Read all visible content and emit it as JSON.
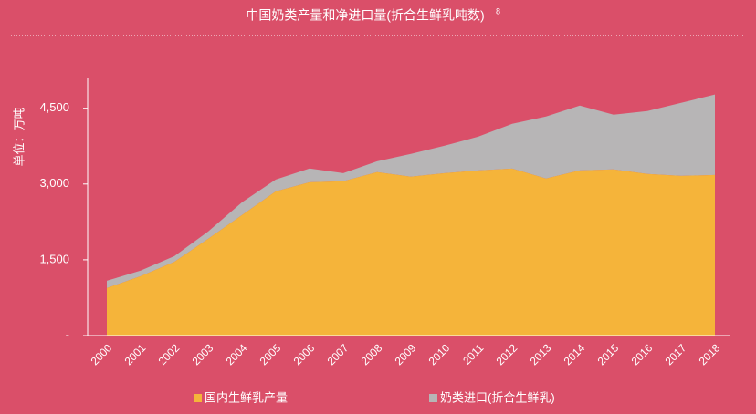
{
  "chart_data": {
    "type": "stacked_area",
    "title": "中国奶类产量和净进口量(折合生鲜乳吨数)",
    "title_note": "8",
    "y_label": "单位：万吨",
    "categories": [
      "2000",
      "2001",
      "2002",
      "2003",
      "2004",
      "2005",
      "2006",
      "2007",
      "2008",
      "2009",
      "2010",
      "2011",
      "2012",
      "2013",
      "2014",
      "2015",
      "2016",
      "2017",
      "2018"
    ],
    "series": [
      {
        "name": "国内生鲜乳产量",
        "color": "#f5b43a",
        "values": [
          940,
          1175,
          1460,
          1915,
          2385,
          2855,
          3035,
          3055,
          3235,
          3145,
          3215,
          3270,
          3305,
          3110,
          3270,
          3290,
          3200,
          3160,
          3180
        ]
      },
      {
        "name": "奶类进口(折合生鲜乳)",
        "color": "#b7b5b6",
        "values": [
          145,
          110,
          112,
          145,
          253,
          235,
          272,
          161,
          216,
          451,
          544,
          669,
          887,
          1227,
          1284,
          1083,
          1245,
          1448,
          1591
        ]
      }
    ],
    "ylim": [
      0,
      5000
    ],
    "yticks": [
      {
        "value": 0,
        "label": "-"
      },
      {
        "value": 1500,
        "label": "1,500"
      },
      {
        "value": 3000,
        "label": "3,000"
      },
      {
        "value": 4500,
        "label": "4,500"
      }
    ]
  }
}
